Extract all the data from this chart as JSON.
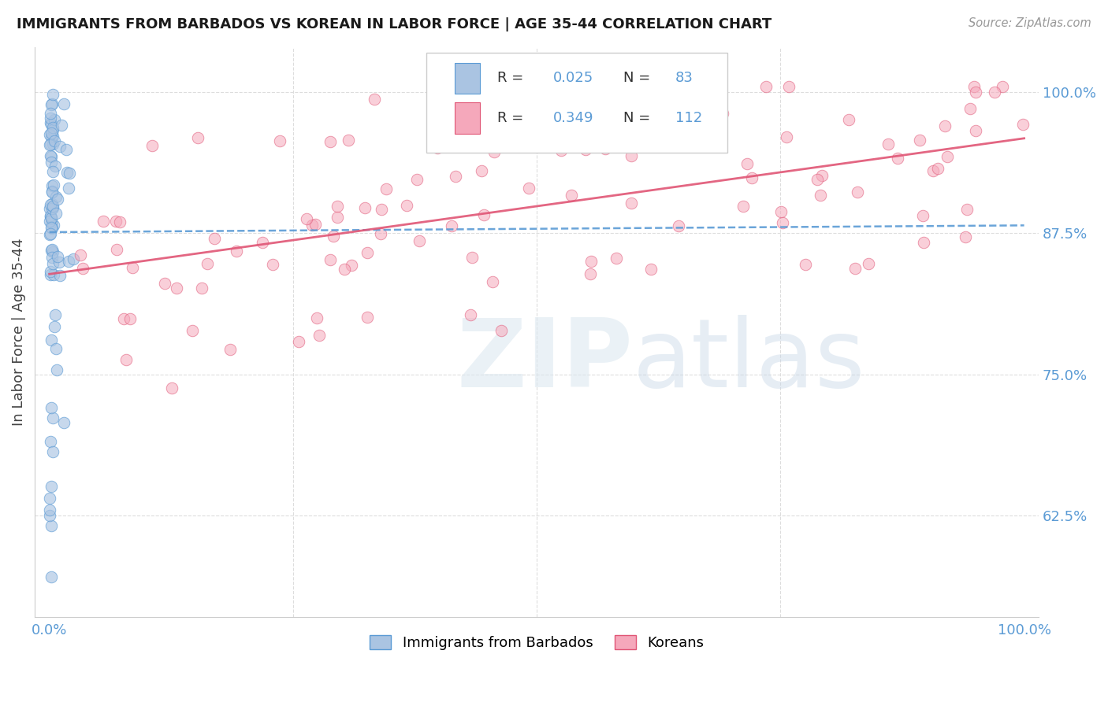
{
  "title": "IMMIGRANTS FROM BARBADOS VS KOREAN IN LABOR FORCE | AGE 35-44 CORRELATION CHART",
  "source": "Source: ZipAtlas.com",
  "ylabel": "In Labor Force | Age 35-44",
  "barbados_R": 0.025,
  "barbados_N": 83,
  "korean_R": 0.349,
  "korean_N": 112,
  "legend_label_1": "Immigrants from Barbados",
  "legend_label_2": "Koreans",
  "scatter_color_barbados": "#aac4e2",
  "scatter_color_korean": "#f5a8bb",
  "line_color_barbados": "#5b9bd5",
  "line_color_korean": "#e05575",
  "yticks": [
    0.625,
    0.75,
    0.875,
    1.0
  ],
  "ytick_labels": [
    "62.5%",
    "75.0%",
    "87.5%",
    "100.0%"
  ],
  "ylim_low": 0.535,
  "ylim_high": 1.04,
  "xlim_low": -0.015,
  "xlim_high": 1.015
}
